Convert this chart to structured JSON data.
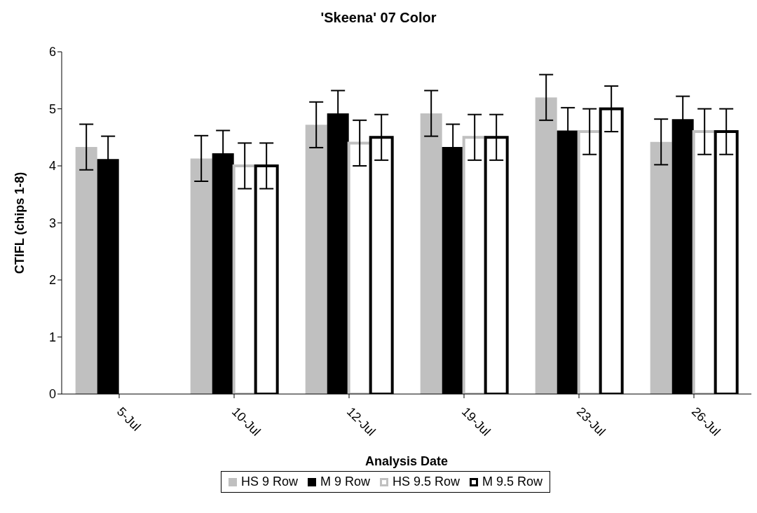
{
  "chart_data": {
    "type": "bar",
    "title": "'Skeena' 07 Color",
    "xlabel": "Analysis Date",
    "ylabel": "CTIFL (chips 1-8)",
    "categories": [
      "5-Jul",
      "10-Jul",
      "12-Jul",
      "19-Jul",
      "23-Jul",
      "26-Jul"
    ],
    "series": [
      {
        "name": "HS 9 Row",
        "color": "#c0c0c0",
        "values": [
          4.33,
          4.13,
          4.72,
          4.92,
          5.2,
          4.42
        ],
        "errors": [
          0.4,
          0.4,
          0.4,
          0.4,
          0.4,
          0.4
        ]
      },
      {
        "name": "M 9 Row",
        "color": "#000000",
        "values": [
          4.12,
          4.22,
          4.92,
          4.33,
          4.62,
          4.82
        ],
        "errors": [
          0.4,
          0.4,
          0.4,
          0.4,
          0.4,
          0.4
        ]
      },
      {
        "name": "HS 9.5 Row",
        "color": "#c0c0c0",
        "values": [
          null,
          4.0,
          4.4,
          4.5,
          4.6,
          4.6
        ],
        "errors": [
          null,
          0.4,
          0.4,
          0.4,
          0.4,
          0.4
        ]
      },
      {
        "name": "M 9.5 Row",
        "color": "#000000",
        "values": [
          null,
          4.0,
          4.5,
          4.5,
          5.0,
          4.6
        ],
        "errors": [
          null,
          0.4,
          0.4,
          0.4,
          0.4,
          0.4
        ]
      }
    ],
    "ylim": [
      0,
      6
    ],
    "yticks": [
      0,
      1,
      2,
      3,
      4,
      5,
      6
    ],
    "grid": false,
    "legend": "bottom"
  }
}
